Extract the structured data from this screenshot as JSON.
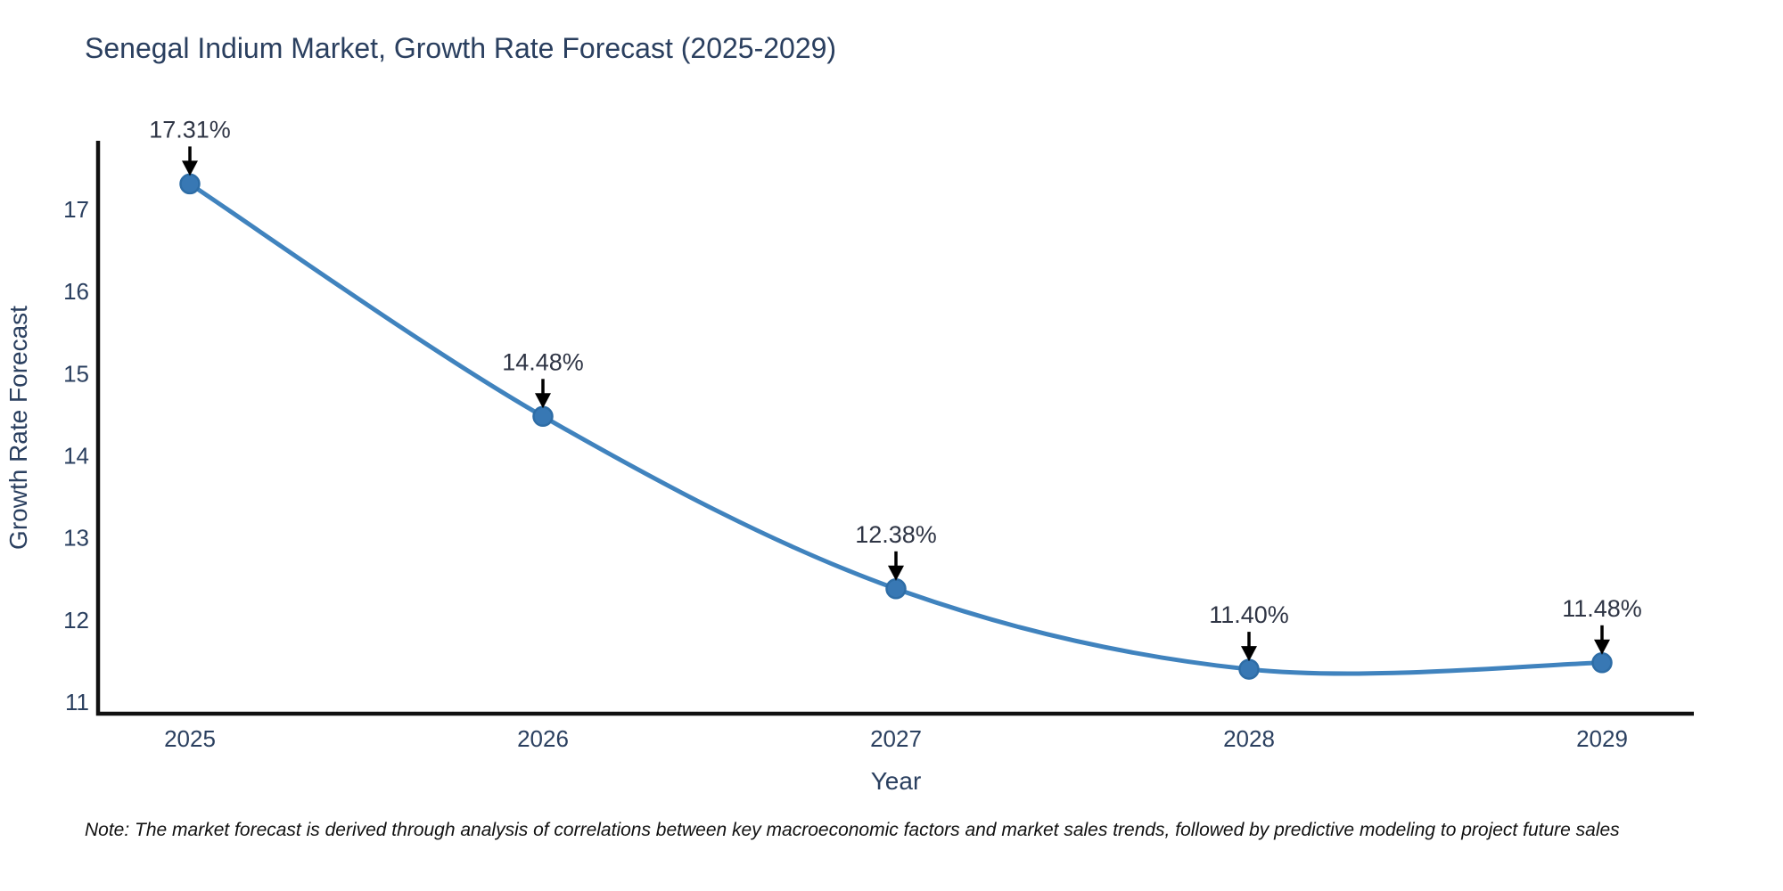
{
  "title": "Senegal Indium Market, Growth Rate Forecast (2025-2029)",
  "note": "Note: The market forecast is derived through analysis of correlations between key macroeconomic factors and market sales trends, followed by predictive modeling to project future sales",
  "chart_data": {
    "type": "line",
    "title": "Senegal Indium Market, Growth Rate Forecast (2025-2029)",
    "categories": [
      "2025",
      "2026",
      "2027",
      "2028",
      "2029"
    ],
    "values": [
      17.31,
      14.48,
      12.38,
      11.4,
      11.48
    ],
    "point_labels": [
      "17.31%",
      "14.48%",
      "12.38%",
      "11.40%",
      "11.48%"
    ],
    "xlabel": "Year",
    "ylabel": "Growth Rate Forecast",
    "yticks": [
      11,
      12,
      13,
      14,
      15,
      16,
      17
    ],
    "ylim": [
      10.8,
      17.8
    ],
    "line_shape": "spline",
    "grid": false,
    "legend": false,
    "annotations_have_arrows": true,
    "colors": {
      "line": "#4083be",
      "marker_fill": "#3878b4",
      "marker_edge": "#2e6da6",
      "axis": "#111111",
      "tick_text": "#2a3f5f",
      "axis_title_text": "#2a3f5f",
      "title_text": "#2a3f5f",
      "annotation_text": "#2f3545",
      "arrow": "#000000"
    }
  }
}
